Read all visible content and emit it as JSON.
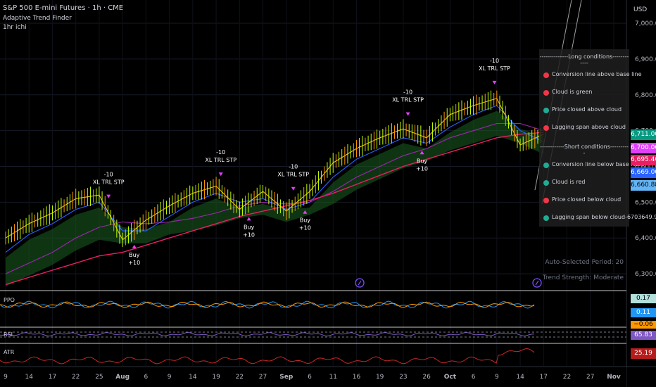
{
  "header": {
    "symbol_line": "S&P 500 E-mini Futures · 1h · CME",
    "indicator_1": "Adaptive Trend Finder",
    "indicator_2": "1hr ichi"
  },
  "currency": "USD",
  "panel": {
    "long_title": "--------------Long conditions------------",
    "long": [
      {
        "label": "Conversion line above base line",
        "status": "red"
      },
      {
        "label": "Cloud is green",
        "status": "red"
      },
      {
        "label": "Price closed above cloud",
        "status": "green"
      },
      {
        "label": "Lagging span above cloud",
        "status": "red"
      }
    ],
    "short_title": "------------Short conditions----------",
    "short": [
      {
        "label": "Conversion line below base line",
        "status": "green"
      },
      {
        "label": "Cloud is red",
        "status": "green"
      },
      {
        "label": "Price closed below cloud",
        "status": "red"
      },
      {
        "label": "Lagging span below cloud-6703649.99999",
        "status": "green"
      }
    ]
  },
  "info": {
    "period": "Auto-Selected Period: 20",
    "strength": "Trend Strength: Moderate"
  },
  "price_tags": [
    {
      "text": "6,711.00",
      "bg": "#089981",
      "fg": "#ffffff",
      "value": 6711
    },
    {
      "text": "6,700.06",
      "bg": "#e040fb",
      "fg": "#ffffff",
      "value": 6700.06
    },
    {
      "text": "6,695.46",
      "bg": "#e91e63",
      "fg": "#ffffff",
      "value": 6695.46
    },
    {
      "text": "6,669.00",
      "bg": "#2962ff",
      "fg": "#ffffff",
      "value": 6669
    },
    {
      "text": "6,660.88",
      "bg": "#64b5f6",
      "fg": "#000000",
      "value": 6660.88
    }
  ],
  "signals": [
    {
      "type": "sell",
      "lines": [
        "-10",
        "XL TRL STP"
      ],
      "x_date": "Jul 26"
    },
    {
      "type": "buy",
      "lines": [
        "Buy",
        "+10"
      ],
      "x_date": "Aug 1"
    },
    {
      "type": "sell",
      "lines": [
        "-10",
        "XL TRL STP"
      ],
      "x_date": "Aug 19"
    },
    {
      "type": "buy",
      "lines": [
        "Buy",
        "+10"
      ],
      "x_date": "Aug 22"
    },
    {
      "type": "sell",
      "lines": [
        "-10",
        "XL TRL STP"
      ],
      "x_date": "Aug 31"
    },
    {
      "type": "buy",
      "lines": [
        "Buy",
        "+10"
      ],
      "x_date": "Sep 2"
    },
    {
      "type": "sell",
      "lines": [
        "-10",
        "XL TRL STP"
      ],
      "x_date": "Sep 22"
    },
    {
      "type": "buy",
      "lines": [
        "Buy",
        "+10"
      ],
      "x_date": "Sep 24"
    },
    {
      "type": "sell",
      "lines": [
        "-10",
        "XL TRL STP"
      ],
      "x_date": "Oct 8"
    }
  ],
  "sub_panes": {
    "ppo": {
      "label": "PPO",
      "tags": [
        {
          "text": "0.17",
          "bg": "#b2dfdb",
          "fg": "#000000"
        },
        {
          "text": "0.11",
          "bg": "#2196f3",
          "fg": "#ffffff"
        },
        {
          "text": "−0.06",
          "bg": "#ff9800",
          "fg": "#000000"
        }
      ]
    },
    "rsi": {
      "label": "RSI",
      "tags": [
        {
          "text": "65.83",
          "bg": "#7e57c2",
          "fg": "#ffffff"
        }
      ]
    },
    "atr": {
      "label": "ATR",
      "tags": [
        {
          "text": "25.19",
          "bg": "#b71c1c",
          "fg": "#ffffff"
        }
      ]
    }
  },
  "x_axis": {
    "labels": [
      "9",
      "14",
      "17",
      "22",
      "25",
      "Aug",
      "6",
      "9",
      "14",
      "19",
      "22",
      "27",
      "Sep",
      "6",
      "11",
      "16",
      "19",
      "23",
      "26",
      "Oct",
      "6",
      "9",
      "14",
      "17",
      "22",
      "27",
      "Nov"
    ]
  },
  "chart_data": {
    "type": "line",
    "title": "S&P 500 E-mini Futures · 1h · CME",
    "y_axis_labels": [
      "7,000.00",
      "6,900.00",
      "6,800.00",
      "6,700.00",
      "6,600.00",
      "6,500.00",
      "6,400.00",
      "6,300.00"
    ],
    "y_ticks": [
      7000,
      6900,
      6800,
      6700,
      6600,
      6500,
      6400,
      6300
    ],
    "ylim": [
      6255,
      7065
    ],
    "x_categories": [
      "Jul 9",
      "Jul 14",
      "Jul 17",
      "Jul 22",
      "Jul 25",
      "Aug 1",
      "Aug 6",
      "Aug 9",
      "Aug 14",
      "Aug 19",
      "Aug 22",
      "Aug 27",
      "Sep 2",
      "Sep 6",
      "Sep 11",
      "Sep 16",
      "Sep 19",
      "Sep 23",
      "Sep 26",
      "Oct 1",
      "Oct 6",
      "Oct 9",
      "Oct 14",
      "Oct 17",
      "Oct 22",
      "Oct 27",
      "Nov 1"
    ],
    "series": [
      {
        "name": "",
        "color": "#e6c229",
        "values": [
          6400,
          6440,
          6470,
          6510,
          6520,
          6395,
          6450,
          6490,
          6525,
          6545,
          6480,
          6530,
          6475,
          6530,
          6610,
          6650,
          6680,
          6705,
          6680,
          6745,
          6770,
          6790,
          6660,
          6690,
          null,
          null,
          null
        ]
      },
      {
        "name": "",
        "color": "#2962ff",
        "values": [
          6360,
          6410,
          6440,
          6480,
          6500,
          6420,
          6420,
          6460,
          6500,
          6525,
          6500,
          6510,
          6480,
          6500,
          6570,
          6620,
          6650,
          6680,
          6665,
          6710,
          6745,
          6770,
          6700,
          6669,
          null,
          null,
          null
        ]
      },
      {
        "name": "",
        "color": "#e91e63",
        "values": [
          6270,
          6290,
          6310,
          6330,
          6350,
          6360,
          6380,
          6400,
          6420,
          6440,
          6460,
          6475,
          6490,
          6505,
          6525,
          6550,
          6575,
          6600,
          6620,
          6640,
          6660,
          6680,
          6690,
          6695,
          null,
          null,
          null
        ]
      },
      {
        "name": "",
        "color": "#9c27b0",
        "values": [
          6300,
          6330,
          6360,
          6400,
          6430,
          6445,
          6440,
          6445,
          6455,
          6470,
          6490,
          6500,
          6495,
          6500,
          6530,
          6570,
          6600,
          6630,
          6650,
          6680,
          6700,
          6720,
          6720,
          6700,
          null,
          null,
          null
        ]
      }
    ],
    "grid": true
  }
}
